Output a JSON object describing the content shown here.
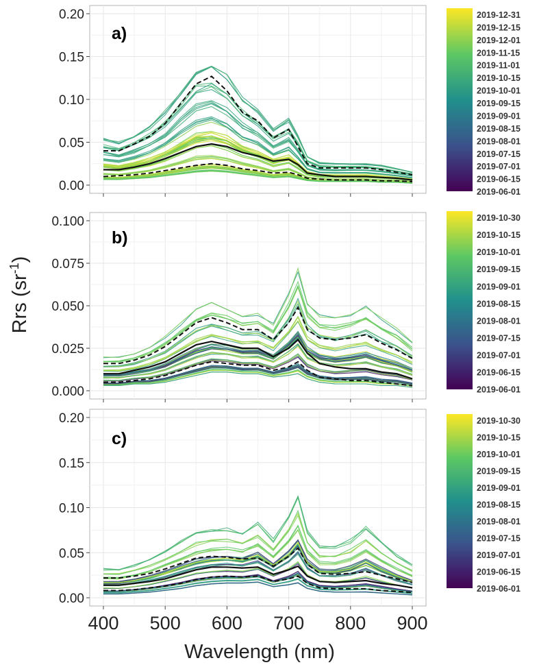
{
  "figure": {
    "ylabel": "Rrs (sr",
    "ylabel_sup": "-1",
    "ylabel_close": ")",
    "xlabel": "Wavelength (nm)"
  },
  "colors": {
    "viridis": [
      "#440154",
      "#3b528b",
      "#21908c",
      "#5dc863",
      "#fde725"
    ],
    "median": "#111111",
    "quantile": "#111111",
    "grid": "#e6e6e6",
    "frame": "#b3b3b3"
  },
  "chart_data": [
    {
      "type": "line",
      "panel": "a)",
      "x": [
        400,
        425,
        450,
        475,
        500,
        525,
        550,
        575,
        600,
        625,
        650,
        675,
        700,
        715,
        730,
        750,
        775,
        800,
        825,
        850,
        875,
        900
      ],
      "xlim": [
        400,
        900
      ],
      "xticks": [
        400,
        500,
        600,
        700,
        800,
        900
      ],
      "ylim": [
        0,
        0.2
      ],
      "yticks": [
        "0.00",
        "0.05",
        "0.10",
        "0.15",
        "0.20"
      ],
      "ytick_values": [
        0,
        0.05,
        0.1,
        0.15,
        0.2
      ],
      "grid": true,
      "series": [
        {
          "name": "q75",
          "style": "dashed",
          "values": [
            0.04,
            0.04,
            0.048,
            0.057,
            0.072,
            0.095,
            0.118,
            0.127,
            0.11,
            0.085,
            0.075,
            0.055,
            0.065,
            0.045,
            0.025,
            0.02,
            0.02,
            0.02,
            0.02,
            0.018,
            0.015,
            0.012
          ]
        },
        {
          "name": "median",
          "style": "solid",
          "values": [
            0.018,
            0.018,
            0.021,
            0.025,
            0.031,
            0.038,
            0.045,
            0.048,
            0.045,
            0.038,
            0.034,
            0.028,
            0.03,
            0.024,
            0.014,
            0.012,
            0.01,
            0.01,
            0.01,
            0.009,
            0.008,
            0.006
          ]
        },
        {
          "name": "q25",
          "style": "dashed",
          "values": [
            0.01,
            0.011,
            0.012,
            0.014,
            0.017,
            0.02,
            0.023,
            0.025,
            0.023,
            0.019,
            0.017,
            0.014,
            0.015,
            0.012,
            0.008,
            0.007,
            0.006,
            0.006,
            0.006,
            0.005,
            0.005,
            0.004
          ]
        }
      ],
      "envelope": {
        "low": [
          0.006,
          0.006,
          0.007,
          0.008,
          0.01,
          0.012,
          0.014,
          0.015,
          0.014,
          0.012,
          0.01,
          0.008,
          0.009,
          0.007,
          0.005,
          0.004,
          0.004,
          0.004,
          0.004,
          0.003,
          0.003,
          0.002
        ],
        "high": [
          0.057,
          0.052,
          0.06,
          0.072,
          0.09,
          0.115,
          0.14,
          0.147,
          0.132,
          0.105,
          0.09,
          0.068,
          0.08,
          0.06,
          0.035,
          0.027,
          0.026,
          0.026,
          0.026,
          0.024,
          0.02,
          0.016
        ]
      },
      "n_spectra": 64,
      "colorbar_labels": [
        "2019-12-31",
        "2019-12-15",
        "2019-12-01",
        "2019-11-15",
        "2019-11-01",
        "2019-10-15",
        "2019-10-01",
        "2019-09-15",
        "2019-09-01",
        "2019-08-15",
        "2019-08-01",
        "2019-07-15",
        "2019-07-01",
        "2019-06-15",
        "2019-06-01"
      ]
    },
    {
      "type": "line",
      "panel": "b)",
      "x": [
        400,
        425,
        450,
        475,
        500,
        525,
        550,
        575,
        600,
        625,
        650,
        675,
        700,
        715,
        730,
        750,
        775,
        800,
        825,
        850,
        875,
        900
      ],
      "xlim": [
        400,
        900
      ],
      "xticks": [
        400,
        500,
        600,
        700,
        800,
        900
      ],
      "ylim": [
        0,
        0.1
      ],
      "yticks": [
        "0.000",
        "0.025",
        "0.050",
        "0.075",
        "0.100"
      ],
      "ytick_values": [
        0,
        0.025,
        0.05,
        0.075,
        0.1
      ],
      "grid": true,
      "series": [
        {
          "name": "q75",
          "style": "dashed",
          "values": [
            0.016,
            0.016,
            0.018,
            0.021,
            0.026,
            0.033,
            0.04,
            0.043,
            0.04,
            0.036,
            0.036,
            0.03,
            0.04,
            0.049,
            0.036,
            0.031,
            0.03,
            0.031,
            0.033,
            0.028,
            0.024,
            0.019
          ]
        },
        {
          "name": "median",
          "style": "solid",
          "values": [
            0.01,
            0.01,
            0.012,
            0.014,
            0.017,
            0.022,
            0.027,
            0.029,
            0.027,
            0.025,
            0.025,
            0.02,
            0.025,
            0.03,
            0.022,
            0.016,
            0.014,
            0.013,
            0.013,
            0.011,
            0.01,
            0.007
          ]
        },
        {
          "name": "q25",
          "style": "dashed",
          "values": [
            0.005,
            0.005,
            0.006,
            0.007,
            0.009,
            0.012,
            0.015,
            0.017,
            0.016,
            0.015,
            0.015,
            0.012,
            0.014,
            0.017,
            0.012,
            0.008,
            0.007,
            0.006,
            0.006,
            0.005,
            0.004,
            0.003
          ]
        }
      ],
      "envelope": {
        "low": [
          0.003,
          0.003,
          0.004,
          0.004,
          0.005,
          0.007,
          0.009,
          0.011,
          0.011,
          0.01,
          0.01,
          0.008,
          0.009,
          0.01,
          0.007,
          0.005,
          0.004,
          0.004,
          0.004,
          0.003,
          0.003,
          0.002
        ],
        "high": [
          0.02,
          0.02,
          0.022,
          0.026,
          0.032,
          0.04,
          0.048,
          0.052,
          0.049,
          0.045,
          0.046,
          0.04,
          0.058,
          0.072,
          0.052,
          0.045,
          0.043,
          0.046,
          0.05,
          0.043,
          0.037,
          0.029
        ]
      },
      "n_spectra": 56,
      "colorbar_labels": [
        "2019-10-30",
        "2019-10-15",
        "2019-10-01",
        "2019-09-15",
        "2019-09-01",
        "2019-08-15",
        "2019-08-01",
        "2019-07-15",
        "2019-07-01",
        "2019-06-15",
        "2019-06-01"
      ]
    },
    {
      "type": "line",
      "panel": "c)",
      "x": [
        400,
        425,
        450,
        475,
        500,
        525,
        550,
        575,
        600,
        625,
        650,
        675,
        700,
        715,
        730,
        750,
        775,
        800,
        825,
        850,
        875,
        900
      ],
      "xlim": [
        400,
        900
      ],
      "xticks": [
        400,
        500,
        600,
        700,
        800,
        900
      ],
      "ylim": [
        0,
        0.2
      ],
      "yticks": [
        "0.00",
        "0.05",
        "0.10",
        "0.15",
        "0.20"
      ],
      "ytick_values": [
        0,
        0.05,
        0.1,
        0.15,
        0.2
      ],
      "grid": true,
      "series": [
        {
          "name": "q75",
          "style": "dashed",
          "values": [
            0.022,
            0.022,
            0.024,
            0.027,
            0.032,
            0.038,
            0.044,
            0.046,
            0.045,
            0.043,
            0.044,
            0.035,
            0.046,
            0.055,
            0.037,
            0.027,
            0.026,
            0.027,
            0.029,
            0.025,
            0.021,
            0.017
          ]
        },
        {
          "name": "median",
          "style": "solid",
          "values": [
            0.014,
            0.014,
            0.016,
            0.018,
            0.021,
            0.026,
            0.031,
            0.034,
            0.034,
            0.033,
            0.034,
            0.026,
            0.031,
            0.035,
            0.024,
            0.018,
            0.017,
            0.018,
            0.019,
            0.016,
            0.014,
            0.011
          ]
        },
        {
          "name": "q25",
          "style": "dashed",
          "values": [
            0.008,
            0.008,
            0.009,
            0.011,
            0.013,
            0.016,
            0.02,
            0.023,
            0.024,
            0.023,
            0.024,
            0.018,
            0.021,
            0.024,
            0.016,
            0.011,
            0.01,
            0.01,
            0.01,
            0.008,
            0.007,
            0.006
          ]
        }
      ],
      "envelope": {
        "low": [
          0.004,
          0.004,
          0.005,
          0.006,
          0.008,
          0.01,
          0.013,
          0.015,
          0.016,
          0.016,
          0.017,
          0.012,
          0.014,
          0.016,
          0.01,
          0.007,
          0.006,
          0.006,
          0.006,
          0.005,
          0.004,
          0.003
        ],
        "high": [
          0.035,
          0.035,
          0.04,
          0.047,
          0.057,
          0.068,
          0.078,
          0.082,
          0.083,
          0.078,
          0.09,
          0.07,
          0.098,
          0.124,
          0.082,
          0.062,
          0.062,
          0.07,
          0.087,
          0.068,
          0.052,
          0.04
        ]
      },
      "n_spectra": 48,
      "colorbar_labels": [
        "2019-10-30",
        "2019-10-15",
        "2019-10-01",
        "2019-09-15",
        "2019-09-01",
        "2019-08-15",
        "2019-08-01",
        "2019-07-15",
        "2019-07-01",
        "2019-06-15",
        "2019-06-01"
      ]
    }
  ]
}
